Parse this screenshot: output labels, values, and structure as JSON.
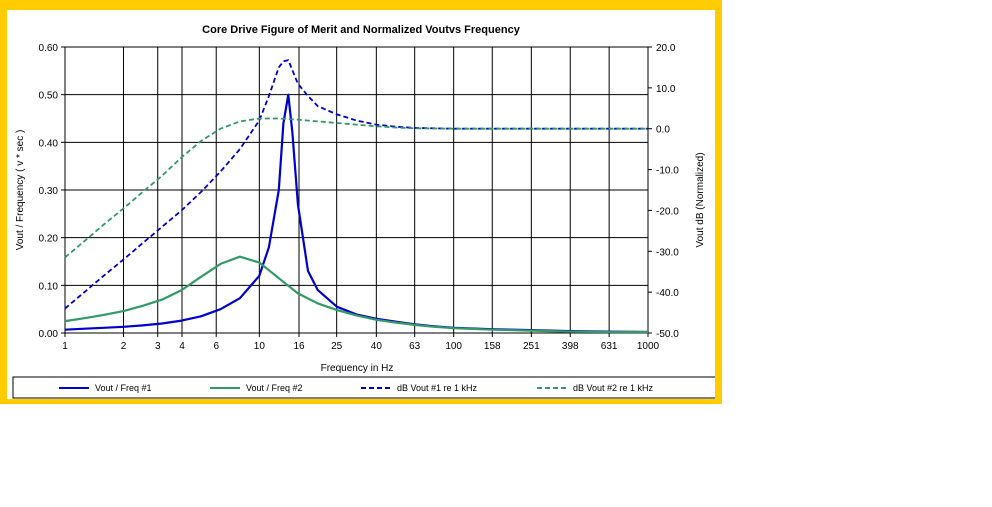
{
  "chart_data": {
    "type": "line",
    "title": "Core Drive Figure of Merit and Normalized Voutvs Frequency",
    "xlabel": "Frequency in Hz",
    "ylabel": "Vout / Frequency ( v * sec )",
    "y2label": "Vout dB (Normalized)",
    "xscale": "log",
    "x_ticks": [
      "1",
      "2",
      "3",
      "4",
      "6",
      "10",
      "16",
      "25",
      "40",
      "63",
      "100",
      "158",
      "251",
      "398",
      "631",
      "1000"
    ],
    "y_ticks": [
      "0.00",
      "0.10",
      "0.20",
      "0.30",
      "0.40",
      "0.50",
      "0.60"
    ],
    "y2_ticks": [
      "-50.0",
      "-40.0",
      "-30.0",
      "-20.0",
      "-10.0",
      "0.0",
      "10.0",
      "20.0"
    ],
    "ylim": [
      0,
      0.6
    ],
    "y2lim": [
      -50,
      20
    ],
    "grid": true,
    "legend_position": "bottom",
    "series": [
      {
        "name": "Vout / Freq #1",
        "axis": "left",
        "color": "#0000CC",
        "dash": "solid",
        "x": [
          1,
          1.26,
          1.58,
          2,
          2.51,
          3.16,
          3.98,
          5.01,
          6.31,
          7.94,
          10,
          11.2,
          12.6,
          13.3,
          14.1,
          14.8,
          15.8,
          17.8,
          20,
          25.1,
          31.6,
          39.8,
          50.1,
          63.1,
          79.4,
          100,
          158,
          251,
          398,
          631,
          1000
        ],
        "y": [
          0.007,
          0.009,
          0.011,
          0.013,
          0.016,
          0.02,
          0.026,
          0.035,
          0.05,
          0.073,
          0.12,
          0.18,
          0.3,
          0.44,
          0.5,
          0.42,
          0.27,
          0.13,
          0.09,
          0.055,
          0.039,
          0.03,
          0.024,
          0.018,
          0.014,
          0.011,
          0.008,
          0.006,
          0.004,
          0.003,
          0.002
        ]
      },
      {
        "name": "Vout / Freq #2",
        "axis": "left",
        "color": "#339966",
        "dash": "solid",
        "x": [
          1,
          1.26,
          1.58,
          2,
          2.51,
          3.16,
          3.98,
          5.01,
          6.31,
          7.94,
          10,
          12.6,
          15.8,
          20,
          25.1,
          31.6,
          39.8,
          50.1,
          63.1,
          79.4,
          100,
          158,
          251,
          398,
          631,
          1000
        ],
        "y": [
          0.025,
          0.031,
          0.038,
          0.046,
          0.057,
          0.07,
          0.09,
          0.118,
          0.145,
          0.16,
          0.148,
          0.115,
          0.083,
          0.062,
          0.048,
          0.037,
          0.028,
          0.022,
          0.017,
          0.013,
          0.01,
          0.007,
          0.005,
          0.003,
          0.002,
          0.002
        ]
      },
      {
        "name": "dB Vout #1 re 1 kHz",
        "axis": "right",
        "color": "#0000CC",
        "dash": "dashed",
        "x": [
          1,
          1.26,
          1.58,
          2,
          2.51,
          3.16,
          3.98,
          5.01,
          6.31,
          7.94,
          10,
          11.2,
          12.6,
          13.3,
          14.1,
          15.8,
          17.8,
          20,
          25.1,
          31.6,
          39.8,
          50.1,
          63.1,
          100,
          158,
          251,
          398,
          631,
          1000
        ],
        "y": [
          -44,
          -40,
          -36,
          -32,
          -28,
          -24,
          -20,
          -15.5,
          -10.5,
          -5,
          2,
          8,
          15,
          16.5,
          16.8,
          11,
          8,
          5.5,
          3.5,
          2,
          1,
          0.5,
          0.2,
          0,
          0,
          0,
          0,
          0,
          0
        ]
      },
      {
        "name": "dB Vout #2 re 1 kHz",
        "axis": "right",
        "color": "#339966",
        "dash": "dashed",
        "x": [
          1,
          1.26,
          1.58,
          2,
          2.51,
          3.16,
          3.98,
          5.01,
          6.31,
          7.94,
          10,
          12.6,
          15.8,
          20,
          25.1,
          31.6,
          39.8,
          50.1,
          63.1,
          100,
          158,
          251,
          398,
          631,
          1000
        ],
        "y": [
          -31.5,
          -27.5,
          -23.5,
          -19.5,
          -15.5,
          -11.5,
          -7,
          -3,
          0,
          1.8,
          2.5,
          2.5,
          2.2,
          1.8,
          1.4,
          1,
          0.6,
          0.3,
          0.1,
          0,
          0,
          0,
          0,
          0,
          0
        ]
      }
    ]
  }
}
